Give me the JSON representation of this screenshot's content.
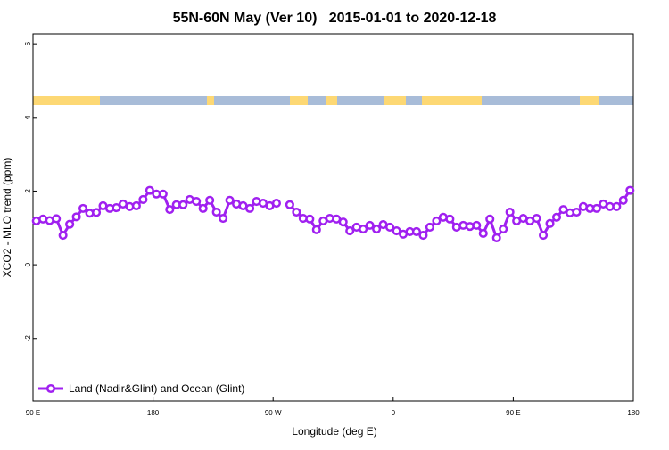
{
  "chart_data": {
    "type": "line",
    "title": "55N-60N May (Ver 10)   2015-01-01 to 2020-12-18",
    "xlabel": "Longitude (deg E)",
    "ylabel": "XCO2 - MLO trend (ppm)",
    "xlim": [
      90,
      540
    ],
    "ylim": [
      -3.7,
      6.27
    ],
    "xticks": [
      {
        "value": 90,
        "label": "90 E"
      },
      180,
      {
        "value": 270,
        "label": "90 W"
      },
      {
        "value": 360,
        "label": "0"
      },
      {
        "value": 450,
        "label": "90 E"
      },
      {
        "value": 540,
        "label": "180"
      }
    ],
    "yticks": [
      -2,
      0,
      2,
      4,
      6
    ],
    "legend": "bottom-left",
    "x": [
      92.5,
      97.5,
      102.5,
      107.5,
      112.5,
      117.5,
      122.5,
      127.5,
      132.5,
      137.5,
      142.5,
      147.5,
      152.5,
      157.5,
      162.5,
      167.5,
      172.5,
      177.5,
      182.5,
      187.5,
      192.5,
      197.5,
      202.5,
      207.5,
      212.5,
      217.5,
      222.5,
      227.5,
      232.5,
      237.5,
      242.5,
      247.5,
      252.5,
      257.5,
      262.5,
      267.5,
      272.5,
      277.5,
      282.5,
      287.5,
      292.5,
      297.5,
      302.5,
      307.5,
      312.5,
      317.5,
      322.5,
      327.5,
      332.5,
      337.5,
      342.5,
      347.5,
      352.5,
      357.5,
      362.5,
      367.5,
      372.5,
      377.5,
      382.5,
      387.5,
      392.5,
      397.5,
      402.5,
      407.5,
      412.5,
      417.5,
      422.5,
      427.5,
      432.5,
      437.5,
      442.5,
      447.5,
      452.5,
      457.5,
      462.5,
      467.5,
      472.5,
      477.5,
      482.5,
      487.5,
      492.5,
      497.5,
      502.5,
      507.5,
      512.5,
      517.5,
      522.5,
      527.5,
      532.5,
      537.5
    ],
    "series": [
      {
        "name": "Land (Nadir&Glint) and Ocean (Glint)",
        "color": "#a020f0",
        "values": [
          1.19,
          1.24,
          1.2,
          1.25,
          0.8,
          1.1,
          1.3,
          1.53,
          1.4,
          1.42,
          1.6,
          1.53,
          1.55,
          1.65,
          1.58,
          1.6,
          1.77,
          2.02,
          1.92,
          1.92,
          1.5,
          1.63,
          1.63,
          1.77,
          1.72,
          1.53,
          1.75,
          1.43,
          1.26,
          1.75,
          1.65,
          1.6,
          1.53,
          1.72,
          1.67,
          1.6,
          1.67,
          null,
          1.63,
          1.43,
          1.26,
          1.24,
          0.95,
          1.19,
          1.26,
          1.24,
          1.16,
          0.92,
          1.02,
          0.97,
          1.07,
          0.97,
          1.09,
          1.02,
          0.92,
          0.83,
          0.9,
          0.9,
          0.8,
          1.02,
          1.19,
          1.29,
          1.24,
          1.02,
          1.07,
          1.04,
          1.07,
          0.85,
          1.24,
          0.73,
          0.97,
          1.43,
          1.19,
          1.26,
          1.19,
          1.26,
          0.8,
          1.12,
          1.29,
          1.5,
          1.41,
          1.43,
          1.58,
          1.53,
          1.53,
          1.65,
          1.58,
          1.58,
          1.75,
          2.02
        ]
      }
    ]
  }
}
